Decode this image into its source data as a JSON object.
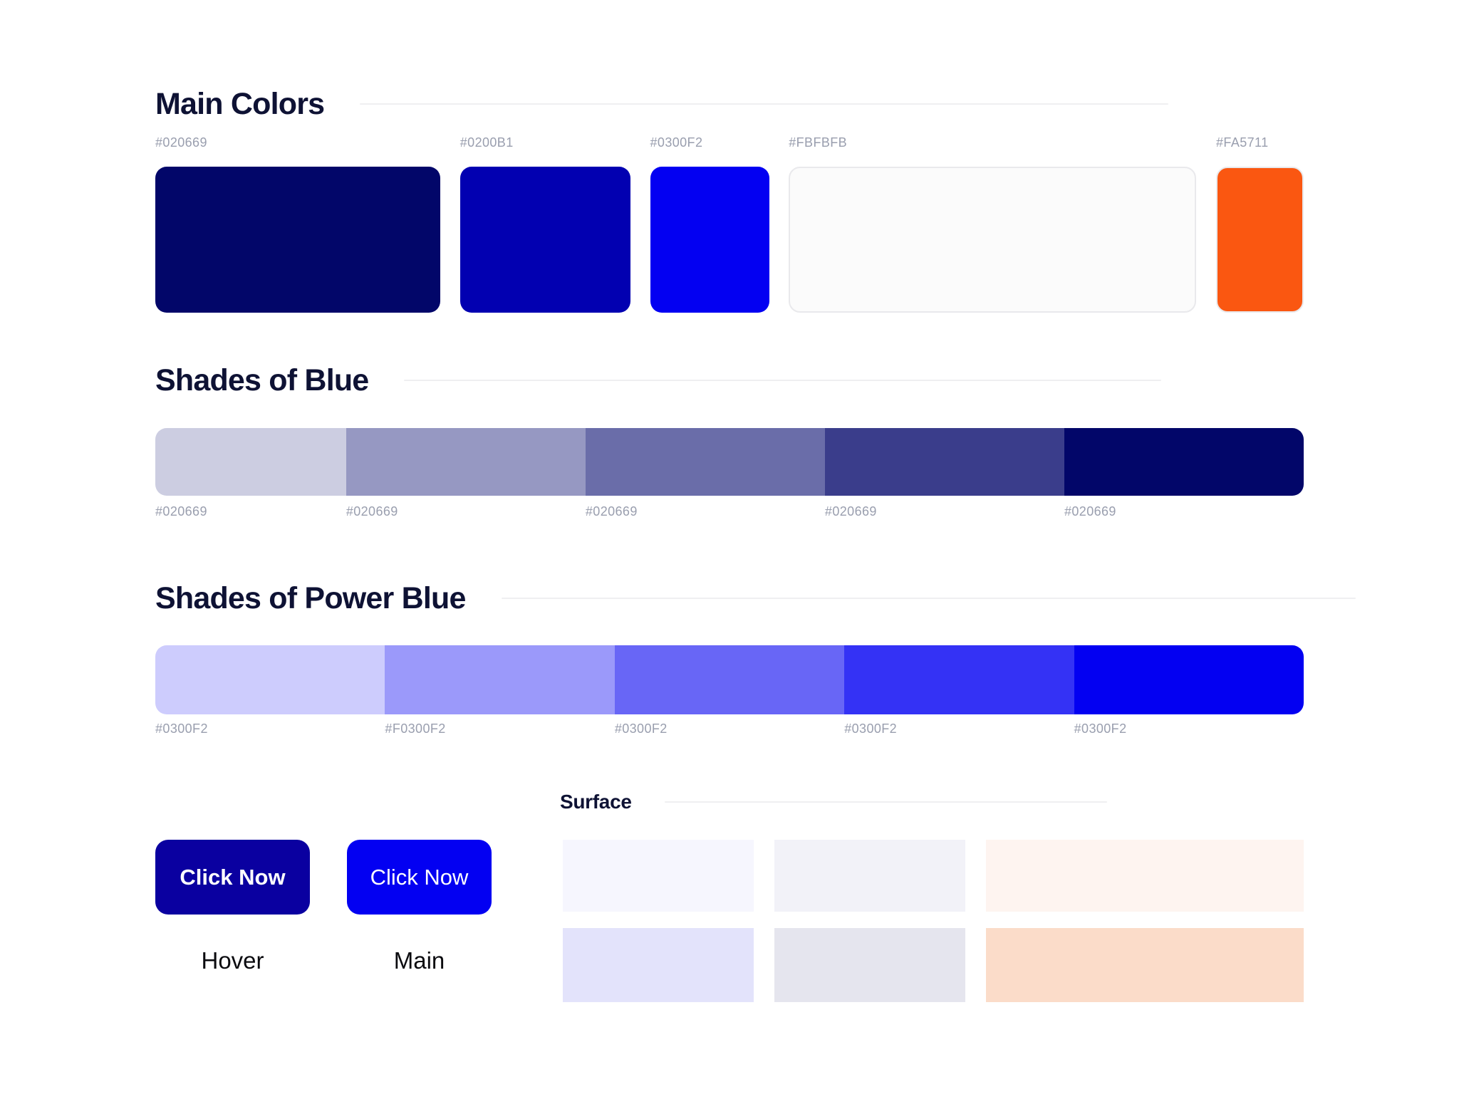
{
  "main_colors": {
    "title": "Main Colors",
    "swatches": [
      {
        "label": "#020669",
        "color": "#020669",
        "bordered": false
      },
      {
        "label": "#0200B1",
        "color": "#0200B1",
        "bordered": false
      },
      {
        "label": "#0300F2",
        "color": "#0300F2",
        "bordered": false
      },
      {
        "label": "#FBFBFB",
        "color": "#FBFBFB",
        "bordered": true
      },
      {
        "label": "#FA5711",
        "color": "#FA5711",
        "bordered": true
      }
    ]
  },
  "shades_of_blue": {
    "title": "Shades of Blue",
    "base_color": "#020669",
    "segments": [
      {
        "label": "#020669",
        "color": "#CCCDE1"
      },
      {
        "label": "#020669",
        "color": "#9698C2"
      },
      {
        "label": "#020669",
        "color": "#6A6DA9"
      },
      {
        "label": "#020669",
        "color": "#3A3D8B"
      },
      {
        "label": "#020669",
        "color": "#020669"
      }
    ]
  },
  "shades_of_power_blue": {
    "title": "Shades of Power Blue",
    "base_color": "#0300F2",
    "segments": [
      {
        "label": "#0300F2",
        "color": "#CDCCFD"
      },
      {
        "label": "#F0300F2",
        "color": "#9B99FA"
      },
      {
        "label": "#0300F2",
        "color": "#6866F6"
      },
      {
        "label": "#0300F2",
        "color": "#3432F5"
      },
      {
        "label": "#0300F2",
        "color": "#0300F2"
      }
    ]
  },
  "buttons": [
    {
      "label": "Click Now",
      "caption": "Hover",
      "color": "#0A00A0",
      "bold": true
    },
    {
      "label": "Click Now",
      "caption": "Main",
      "color": "#0300F2",
      "bold": false
    }
  ],
  "surface": {
    "title": "Surface",
    "cells": [
      {
        "color": "#F6F6FE"
      },
      {
        "color": "#F2F2F8"
      },
      {
        "color": "#FEF4F0"
      },
      {
        "color": "#E3E3FB"
      },
      {
        "color": "#E5E5EE"
      },
      {
        "color": "#FBDCC9"
      }
    ]
  }
}
